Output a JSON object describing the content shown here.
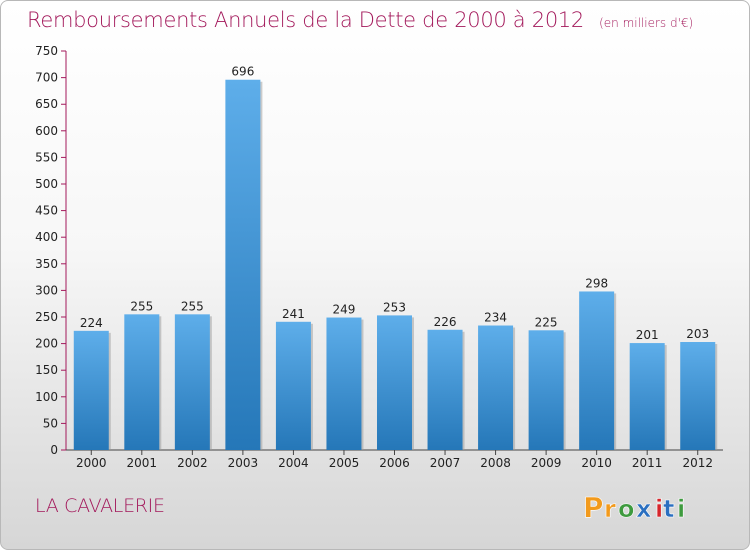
{
  "header": {
    "title": "Remboursements Annuels de la Dette de 2000 à 2012",
    "unit": "(en milliers d'€)"
  },
  "place": "LA CAVALERIE",
  "logo": {
    "text": "Proxiti",
    "letters": [
      "P",
      "r",
      "o",
      "x",
      "i",
      "t",
      "i"
    ],
    "colors": [
      "#f29a1c",
      "#f29a1c",
      "#3e9a3e",
      "#2a6fc0",
      "#d6262c",
      "#2a6fc0",
      "#3e9a3e"
    ]
  },
  "colors": {
    "title": "#a3195b",
    "bar_light": "#5eaeea",
    "bar_dark": "#2577b8",
    "axis": "#444444",
    "grid": "#a3195b"
  },
  "chart_data": {
    "type": "bar",
    "title": "Remboursements Annuels de la Dette de 2000 à 2012",
    "subtitle": "(en milliers d'€)",
    "categories": [
      "2000",
      "2001",
      "2002",
      "2003",
      "2004",
      "2005",
      "2006",
      "2007",
      "2008",
      "2009",
      "2010",
      "2011",
      "2012"
    ],
    "values": [
      224,
      255,
      255,
      696,
      241,
      249,
      253,
      226,
      234,
      225,
      298,
      201,
      203
    ],
    "ylim": [
      0,
      750
    ],
    "yticks": [
      0,
      50,
      100,
      150,
      200,
      250,
      300,
      350,
      400,
      450,
      500,
      550,
      600,
      650,
      700,
      750
    ],
    "grid": false,
    "legend": "none"
  }
}
